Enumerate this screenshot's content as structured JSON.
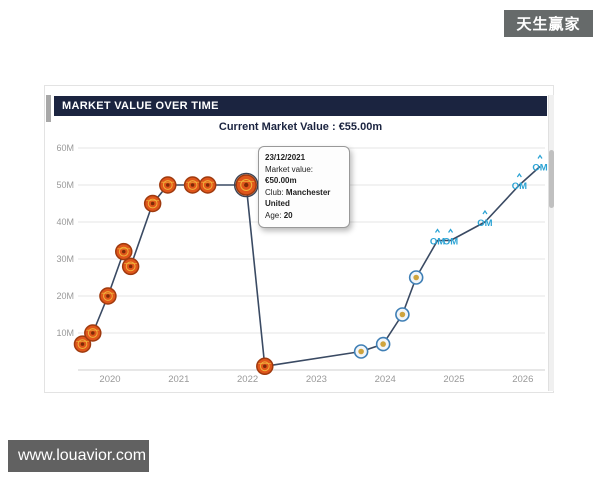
{
  "watermarks": {
    "top_right": "天生赢家",
    "bottom_left": "www.louavior.com"
  },
  "panel": {
    "title": "MARKET VALUE OVER TIME",
    "subtitle": "Current Market Value : €55.00m"
  },
  "tooltip": {
    "date": "23/12/2021",
    "rows": [
      {
        "label": "Market value:",
        "value": "€50.00m"
      },
      {
        "label": "Club:",
        "value": "Manchester United"
      },
      {
        "label": "Age:",
        "value": "20"
      }
    ]
  },
  "colors": {
    "navy": "#1b2440",
    "line": "#3a4a63",
    "grid": "#e6e6e6",
    "axis": "#cfcfcf",
    "tick_text": "#999999",
    "mu_body": "#e0561b",
    "mu_ring": "#9f3a0e",
    "mu_gold": "#f0b23a",
    "mu_center": "#7e2a07",
    "highlight_ring": "#3d4454",
    "getafe_fill": "#f2f6fa",
    "getafe_blue": "#3f7fb5",
    "getafe_gold": "#cfa43d",
    "om_blue": "#2ba3d4"
  },
  "chart_data": {
    "type": "line",
    "title": "MARKET VALUE OVER TIME",
    "xlabel": "",
    "ylabel": "",
    "ylim_eur_m": [
      0,
      60
    ],
    "grid": true,
    "legend": "none",
    "y_ticks": [
      {
        "value": 10,
        "label": "10M"
      },
      {
        "value": 20,
        "label": "20M"
      },
      {
        "value": 30,
        "label": "30M"
      },
      {
        "value": 40,
        "label": "40M"
      },
      {
        "value": 50,
        "label": "50M"
      },
      {
        "value": 60,
        "label": "60M"
      }
    ],
    "x_ticks": [
      {
        "value": 2020,
        "label": "2020"
      },
      {
        "value": 2021,
        "label": "2021"
      },
      {
        "value": 2022,
        "label": "2022"
      },
      {
        "value": 2023,
        "label": "2023"
      },
      {
        "value": 2024,
        "label": "2024"
      },
      {
        "value": 2025,
        "label": "2025"
      },
      {
        "value": 2026,
        "label": "2026"
      }
    ],
    "highlight_index": 9,
    "series": [
      {
        "name": "Market value (€m)",
        "points": [
          {
            "x": 2019.6,
            "value_eur_m": 7,
            "club": "Manchester United",
            "badge": "manutd"
          },
          {
            "x": 2019.75,
            "value_eur_m": 10,
            "club": "Manchester United",
            "badge": "manutd"
          },
          {
            "x": 2019.97,
            "value_eur_m": 20,
            "club": "Manchester United",
            "badge": "manutd"
          },
          {
            "x": 2020.2,
            "value_eur_m": 32,
            "club": "Manchester United",
            "badge": "manutd"
          },
          {
            "x": 2020.3,
            "value_eur_m": 28,
            "club": "Manchester United",
            "badge": "manutd"
          },
          {
            "x": 2020.62,
            "value_eur_m": 45,
            "club": "Manchester United",
            "badge": "manutd"
          },
          {
            "x": 2020.84,
            "value_eur_m": 50,
            "club": "Manchester United",
            "badge": "manutd"
          },
          {
            "x": 2021.2,
            "value_eur_m": 50,
            "club": "Manchester United",
            "badge": "manutd"
          },
          {
            "x": 2021.42,
            "value_eur_m": 50,
            "club": "Manchester United",
            "badge": "manutd"
          },
          {
            "x": 2021.98,
            "value_eur_m": 50,
            "club": "Manchester United",
            "badge": "manutd",
            "date": "23/12/2021",
            "highlighted": true
          },
          {
            "x": 2022.25,
            "value_eur_m": 1,
            "club": "Manchester United",
            "badge": "manutd"
          },
          {
            "x": 2023.65,
            "value_eur_m": 5,
            "club": "Getafe CF",
            "badge": "getafe"
          },
          {
            "x": 2023.97,
            "value_eur_m": 7,
            "club": "Getafe CF",
            "badge": "getafe"
          },
          {
            "x": 2024.25,
            "value_eur_m": 15,
            "club": "Getafe CF",
            "badge": "getafe"
          },
          {
            "x": 2024.45,
            "value_eur_m": 25,
            "club": "Getafe CF",
            "badge": "getafe"
          },
          {
            "x": 2024.76,
            "value_eur_m": 35,
            "club": "Olympique Marseille",
            "badge": "marseille"
          },
          {
            "x": 2024.95,
            "value_eur_m": 35,
            "club": "Olympique Marseille",
            "badge": "marseille"
          },
          {
            "x": 2025.45,
            "value_eur_m": 40,
            "club": "Olympique Marseille",
            "badge": "marseille"
          },
          {
            "x": 2025.95,
            "value_eur_m": 50,
            "club": "Olympique Marseille",
            "badge": "marseille"
          },
          {
            "x": 2026.25,
            "value_eur_m": 55,
            "club": "Olympique Marseille",
            "badge": "marseille"
          }
        ]
      }
    ]
  }
}
